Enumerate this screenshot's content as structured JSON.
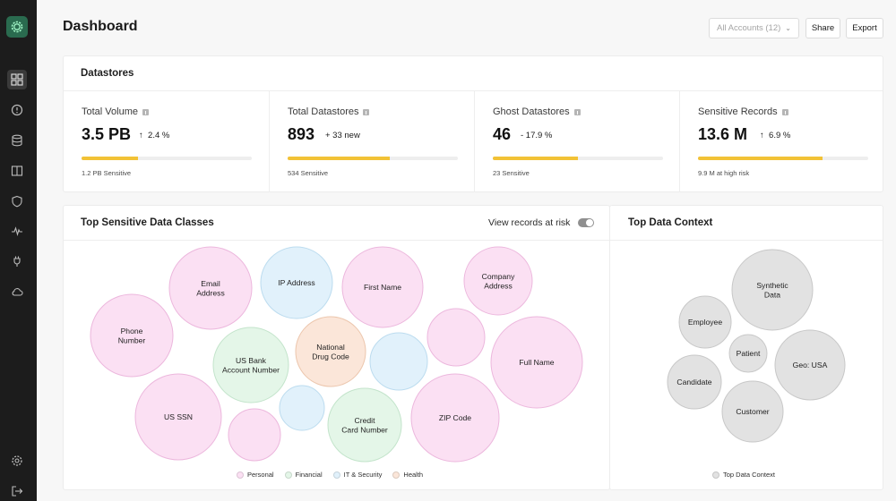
{
  "page": {
    "title": "Dashboard"
  },
  "header": {
    "accounts_label": "All Accounts (12)",
    "share_label": "Share",
    "export_label": "Export"
  },
  "sidebar": {
    "logo": "gear-logo-icon",
    "items": [
      {
        "icon": "grid-icon",
        "active": true
      },
      {
        "icon": "alert-circle-icon",
        "active": false
      },
      {
        "icon": "database-icon",
        "active": false
      },
      {
        "icon": "book-icon",
        "active": false
      },
      {
        "icon": "shield-icon",
        "active": false
      },
      {
        "icon": "activity-icon",
        "active": false
      },
      {
        "icon": "plug-icon",
        "active": false
      },
      {
        "icon": "cloud-icon",
        "active": false
      }
    ],
    "bottom_items": [
      {
        "icon": "settings-icon"
      },
      {
        "icon": "logout-icon"
      }
    ]
  },
  "datastores": {
    "title": "Datastores",
    "metrics": [
      {
        "label": "Total Volume",
        "value": "3.5 PB",
        "delta": "2.4 %",
        "delta_dir": "up",
        "bar_fraction": 0.33,
        "sub": "1.2 PB Sensitive"
      },
      {
        "label": "Total Datastores",
        "value": "893",
        "delta": "+ 33 new",
        "delta_dir": "none",
        "bar_fraction": 0.6,
        "sub": "534 Sensitive"
      },
      {
        "label": "Ghost Datastores",
        "value": "46",
        "delta": "- 17.9 %",
        "delta_dir": "none",
        "bar_fraction": 0.5,
        "sub": "23 Sensitive"
      },
      {
        "label": "Sensitive Records",
        "value": "13.6 M",
        "delta": "6.9 %",
        "delta_dir": "up",
        "bar_fraction": 0.73,
        "sub": "9.9 M at high risk"
      }
    ]
  },
  "sensitive_classes": {
    "title": "Top Sensitive Data Classes",
    "toggle_label": "View records at risk",
    "toggle_on": false,
    "bubbles": [
      {
        "label": "Email Address",
        "category": "Personal"
      },
      {
        "label": "IP Address",
        "category": "IT & Security"
      },
      {
        "label": "First Name",
        "category": "Personal"
      },
      {
        "label": "Company Address",
        "category": "Personal"
      },
      {
        "label": "Phone Number",
        "category": "Personal"
      },
      {
        "label": "US Bank Account Number",
        "category": "Financial"
      },
      {
        "label": "National Drug Code",
        "category": "Health"
      },
      {
        "label": "",
        "category": "IT & Security"
      },
      {
        "label": "",
        "category": "Personal"
      },
      {
        "label": "Full Name",
        "category": "Personal"
      },
      {
        "label": "US SSN",
        "category": "Personal"
      },
      {
        "label": "",
        "category": "IT & Security"
      },
      {
        "label": "Credit Card Number",
        "category": "Financial"
      },
      {
        "label": "ZIP Code",
        "category": "Personal"
      },
      {
        "label": "",
        "category": "Personal"
      }
    ],
    "legend": [
      {
        "label": "Personal",
        "color": "#fbe0f3"
      },
      {
        "label": "Financial",
        "color": "#e4f6e8"
      },
      {
        "label": "IT & Security",
        "color": "#e1f1fb"
      },
      {
        "label": "Health",
        "color": "#fbe6d9"
      }
    ]
  },
  "data_context": {
    "title": "Top Data Context",
    "bubbles": [
      {
        "label": "Synthetic Data"
      },
      {
        "label": "Employee"
      },
      {
        "label": "Patient"
      },
      {
        "label": "Geo: USA"
      },
      {
        "label": "Candidate"
      },
      {
        "label": "Customer"
      }
    ],
    "legend": [
      {
        "label": "Top Data Context",
        "color": "#e2e2e2"
      }
    ]
  },
  "colors": {
    "accent_bar": "#f2c236",
    "personal": "#fbe0f3",
    "personal_stroke": "#ecb7dd",
    "financial": "#e4f6e8",
    "financial_stroke": "#c3e4cb",
    "it_security": "#e1f1fb",
    "it_security_stroke": "#bcdcef",
    "health": "#fbe6d9",
    "health_stroke": "#ecc6ad",
    "context": "#e2e2e2",
    "context_stroke": "#c8c8c8"
  }
}
